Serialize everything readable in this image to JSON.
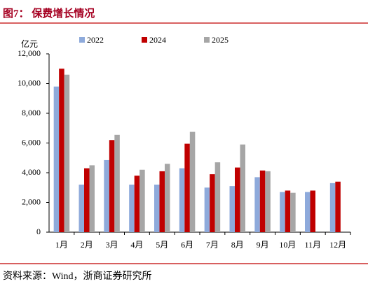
{
  "chart_data": {
    "type": "bar",
    "title": "图7：  保费增长情况",
    "y_label": "亿元",
    "source": "资料来源：Wind，浙商证券研究所",
    "categories": [
      "1月",
      "2月",
      "3月",
      "4月",
      "5月",
      "6月",
      "7月",
      "8月",
      "9月",
      "10月",
      "11月",
      "12月"
    ],
    "series": [
      {
        "name": "2022",
        "color": "#8eaadb",
        "values": [
          9800,
          3200,
          4850,
          3200,
          3200,
          4300,
          3000,
          3100,
          3700,
          2700,
          2700,
          3300
        ]
      },
      {
        "name": "2024",
        "color": "#c00000",
        "values": [
          11000,
          4300,
          6200,
          3800,
          4100,
          5950,
          3900,
          4350,
          4150,
          2800,
          2800,
          3400
        ]
      },
      {
        "name": "2025",
        "color": "#a6a6a6",
        "values": [
          10600,
          4500,
          6550,
          4200,
          4600,
          6750,
          4700,
          5900,
          4100,
          2650,
          null,
          null
        ]
      }
    ],
    "ylim": [
      0,
      12000
    ],
    "yticks": [
      0,
      {
        "value": 2000,
        "label": "2,000"
      },
      {
        "value": 4000,
        "label": "4,000"
      },
      {
        "value": 6000,
        "label": "6,000"
      },
      {
        "value": 8000,
        "label": "8,000"
      },
      {
        "value": 10000,
        "label": "10,000"
      },
      {
        "value": 12000,
        "label": "12,000"
      }
    ],
    "grid": false,
    "legend": "top"
  }
}
